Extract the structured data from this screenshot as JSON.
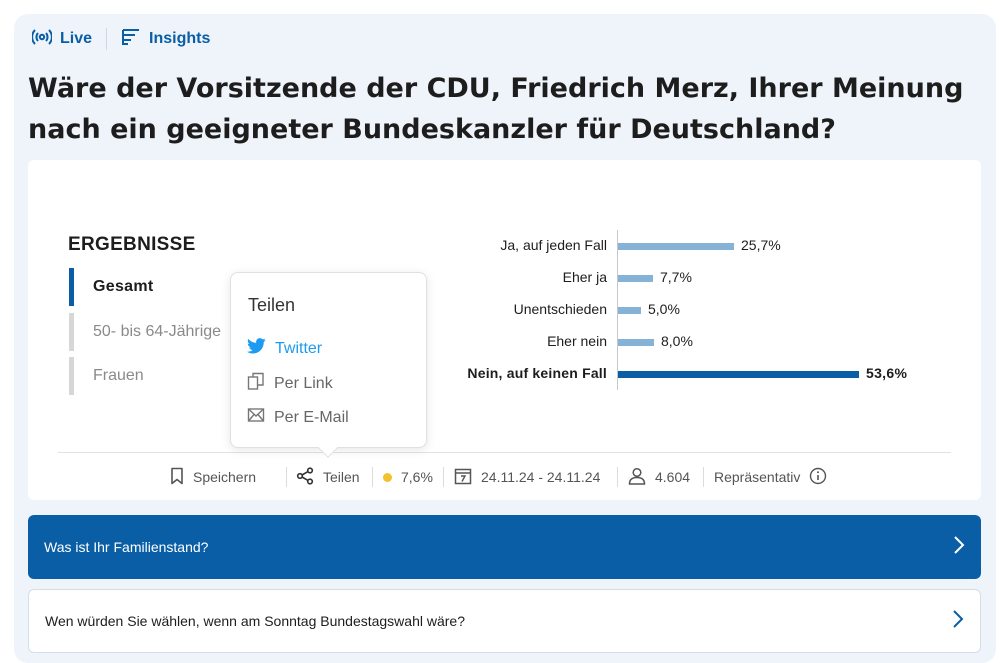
{
  "nav": {
    "live_label": "Live",
    "insights_label": "Insights",
    "live_icon": "live-broadcast-icon",
    "insights_icon": "insights-icon"
  },
  "question": {
    "title": "Wäre der Vorsitzende der CDU, Friedrich Merz, Ihrer Meinung nach ein geeigneter Bundeskanzler für Deutschland?"
  },
  "results": {
    "heading": "ERGEBNISSE",
    "filters": [
      {
        "label": "Gesamt",
        "active": true
      },
      {
        "label": "50- bis 64-Jährige",
        "active": false
      },
      {
        "label": "Frauen",
        "active": false
      }
    ]
  },
  "chart_data": {
    "type": "bar",
    "orientation": "horizontal",
    "categories": [
      "Ja, auf jeden Fall",
      "Eher ja",
      "Unentschieden",
      "Eher nein",
      "Nein, auf keinen Fall"
    ],
    "values": [
      25.7,
      7.7,
      5.0,
      8.0,
      53.6
    ],
    "value_labels": [
      "25,7%",
      "7,7%",
      "5,0%",
      "8,0%",
      "53,6%"
    ],
    "highlighted_index": 4,
    "colors": {
      "bar": "#85b3d8",
      "highlight": "#0a5ea6"
    },
    "grid": false
  },
  "share_popup": {
    "title": "Teilen",
    "items": [
      {
        "label": "Twitter",
        "icon": "twitter-bird-icon"
      },
      {
        "label": "Per Link",
        "icon": "link-copy-icon"
      },
      {
        "label": "Per E-Mail",
        "icon": "email-icon"
      }
    ]
  },
  "meta": {
    "save_label": "Speichern",
    "share_label": "Teilen",
    "margin_of_error": "7,6%",
    "date_range": "24.11.24 - 24.11.24",
    "respondents": "4.604",
    "representative_label": "Repräsentativ"
  },
  "related": [
    {
      "label": "Was ist Ihr Familienstand?",
      "highlighted": true
    },
    {
      "label": "Wen würden Sie wählen, wenn am Sonntag Bundestagswahl wäre?",
      "highlighted": false
    }
  ],
  "colors": {
    "accent": "#0a5ea6",
    "page_background": "#eff4fb",
    "status_dot": "#f2c12e",
    "twitter": "#1d9bf0"
  }
}
